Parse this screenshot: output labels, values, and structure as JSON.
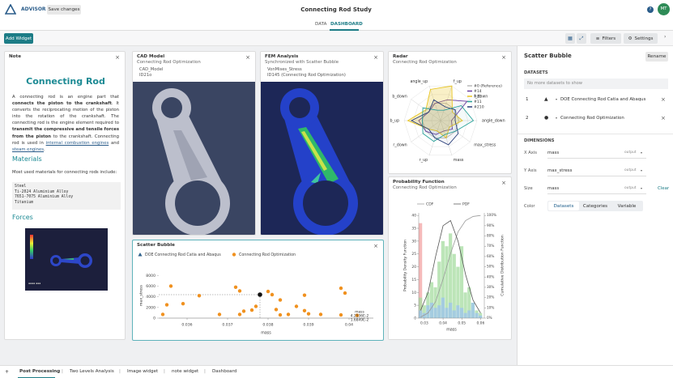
{
  "header": {
    "app": "ADVISOR",
    "save": "Save changes",
    "title": "Connecting Rod Study",
    "help": "?",
    "avatar": "MT"
  },
  "tabs": [
    "DATA",
    "DASHBOARD"
  ],
  "toolbar": {
    "add": "Add Widget",
    "filters": "Filters",
    "settings": "Settings"
  },
  "note": {
    "title": "Note",
    "heading": "Connecting Rod",
    "paragraph": [
      "A connecting rod is an engine part that ",
      "connects the piston to the crankshaft",
      ". It converts the reciprocating motion of the piston into the rotation of the crankshaft. The connecting rod is the engine element required to ",
      "transmit the compressive and tensile forces from the piston",
      " to the crankshaft. Connecting rod is used in ",
      "internal combustion engines",
      " and ",
      "steam engines",
      "."
    ],
    "materials_heading": "Materials",
    "materials_intro": "Most used materials for connecting rods include:",
    "materials": [
      "Steel",
      "Ti-2024 Aluminium Alloy",
      "7651-7075 Aluminium Alloy",
      "Titanium"
    ],
    "forces_heading": "Forces"
  },
  "cad": {
    "title": "CAD Model",
    "subtitle": "Connecting Rod Optimization",
    "name": "CAD_Model",
    "id": "ID21o"
  },
  "fem": {
    "title": "FEM Analysis",
    "subtitle": "Synchronized with Scatter Bubble",
    "name": "VonMises_Stress",
    "id": "ID145 (Connecting Rod Optimization)"
  },
  "chart_data": [
    {
      "type": "radar",
      "title": "Radar",
      "subtitle": "Connecting Rod Optimization",
      "axes": [
        "f_up",
        "f_down",
        "angle_down",
        "max_stress",
        "mass",
        "r_up",
        "r_down",
        "b_up",
        "b_down",
        "angle_up"
      ],
      "rlim": [
        0,
        1
      ],
      "series": [
        {
          "name": "#0 (Reference)",
          "color": "#b8b8b8",
          "values": [
            0.5,
            0.5,
            0.5,
            0.5,
            0.5,
            0.5,
            0.5,
            0.5,
            0.5,
            0.5
          ]
        },
        {
          "name": "#14",
          "color": "#6b3fa0",
          "values": [
            0.6,
            0.9,
            0.3,
            0.4,
            0.3,
            0.4,
            0.5,
            0.6,
            0.4,
            0.5
          ]
        },
        {
          "name": "#21",
          "color": "#e8c420",
          "values": [
            1.0,
            0.4,
            0.6,
            0.3,
            0.5,
            0.3,
            0.4,
            0.9,
            0.5,
            0.9
          ]
        },
        {
          "name": "#11",
          "color": "#2aa39a",
          "values": [
            0.3,
            0.7,
            0.9,
            0.5,
            0.4,
            0.6,
            0.6,
            0.5,
            0.6,
            0.3
          ]
        },
        {
          "name": "#210",
          "color": "#2a3f7a",
          "values": [
            0.4,
            0.5,
            0.4,
            0.6,
            0.7,
            0.5,
            0.4,
            0.8,
            0.4,
            0.6
          ]
        }
      ]
    },
    {
      "type": "histogram",
      "title": "Probability Function",
      "subtitle": "Connecting Rod Optimization",
      "bins": [
        0.027,
        0.029,
        0.031,
        0.033,
        0.035,
        0.037,
        0.039,
        0.041,
        0.043,
        0.045,
        0.047,
        0.049,
        0.051,
        0.053,
        0.055,
        0.057,
        0.059,
        0.061
      ],
      "series": [
        {
          "color": "#f2a3a3",
          "values": [
            37,
            0,
            0,
            0,
            0,
            0,
            0,
            0,
            0,
            0,
            0,
            0,
            0,
            0,
            0,
            0,
            0
          ]
        },
        {
          "color": "#a6dca0",
          "values": [
            8,
            5,
            10,
            14,
            12,
            22,
            30,
            28,
            33,
            25,
            20,
            28,
            10,
            12,
            6,
            3,
            2
          ]
        },
        {
          "color": "#9cc3ee",
          "values": [
            3,
            2,
            5,
            6,
            4,
            5,
            8,
            4,
            6,
            3,
            5,
            4,
            2,
            3,
            6,
            2,
            1
          ]
        }
      ],
      "curve_x": [
        0.028,
        0.032,
        0.036,
        0.04,
        0.044,
        0.048,
        0.052,
        0.056,
        0.06
      ],
      "curves": [
        {
          "name": "CDF",
          "color": "#9a9a9a",
          "axis": "y2",
          "values": [
            1,
            5,
            16,
            38,
            63,
            84,
            95,
            99,
            100
          ]
        },
        {
          "name": "PDF",
          "color": "#555555",
          "values": [
            3,
            10,
            24,
            36,
            38,
            30,
            17,
            7,
            2
          ]
        }
      ],
      "xlabel": "mass",
      "ylabel": "Probability Density Function",
      "y2label": "Cumulative Distribution Function",
      "xlim": [
        0.027,
        0.062
      ],
      "xticks": [
        0.03,
        0.04,
        0.05,
        0.06
      ],
      "ylim": [
        0,
        41
      ],
      "yticks": [
        0,
        5,
        10,
        15,
        20,
        25,
        30,
        35,
        40
      ],
      "y2lim": [
        0,
        102.5
      ],
      "y2ticks": [
        {
          "value": 0,
          "label": "0%"
        },
        {
          "value": 10,
          "label": "10%"
        },
        {
          "value": 20,
          "label": "20%"
        },
        {
          "value": 30,
          "label": "30%"
        },
        {
          "value": 40,
          "label": "40%"
        },
        {
          "value": 50,
          "label": "50%"
        },
        {
          "value": 60,
          "label": "60%"
        },
        {
          "value": 70,
          "label": "70%"
        },
        {
          "value": 80,
          "label": "80%"
        },
        {
          "value": 90,
          "label": "90%"
        },
        {
          "value": 100,
          "label": "100%"
        }
      ]
    },
    {
      "type": "scatter",
      "title": "Scatter Bubble",
      "series": [
        {
          "name": "DOE Connecting Rod Catia and Abaqus",
          "color": "#2c5f8a",
          "marker": "triangle",
          "x": [],
          "y": []
        },
        {
          "name": "Connecting Rod Optimization",
          "color": "#f0911f",
          "marker": "circle",
          "x": [
            0.0356,
            0.0355,
            0.0354,
            0.0359,
            0.0363,
            0.0368,
            0.0372,
            0.0373,
            0.0374,
            0.0373,
            0.0377,
            0.0376,
            0.038,
            0.0381,
            0.0382,
            0.0383,
            0.0385,
            0.0387,
            0.0389,
            0.039,
            0.0389,
            0.0393,
            0.0398,
            0.0399,
            0.0398,
            0.0402,
            0.0383
          ],
          "y": [
            6000,
            2500,
            700,
            2700,
            4200,
            700,
            5800,
            5100,
            1300,
            700,
            2200,
            1500,
            5000,
            4400,
            1600,
            3400,
            700,
            2200,
            1400,
            800,
            4300,
            700,
            5600,
            4700,
            600,
            500,
            600
          ]
        }
      ],
      "highlight": {
        "x": 0.0378,
        "y": 4400
      },
      "tooltip": [
        "mass",
        "4.2536E-2",
        "1.6849E-2"
      ],
      "xlabel": "mass",
      "ylabel": "max_stress",
      "xlim": [
        0.0353,
        0.0406
      ],
      "xticks": [
        0.036,
        0.037,
        0.038,
        0.039,
        0.04
      ],
      "ylim": [
        0,
        8500
      ],
      "yticks": [
        0,
        2000,
        4000,
        6000,
        8000
      ]
    }
  ],
  "panel": {
    "title": "Scatter Bubble",
    "rename": "Rename",
    "datasets_heading": "DATASETS",
    "empty": "No more datasets to show",
    "datasets": [
      {
        "index": 1,
        "name": "DOE Connecting Rod Catia and Abaqus"
      },
      {
        "index": 2,
        "name": "Connecting Rod Optimization"
      }
    ],
    "dimensions_heading": "DIMENSIONS",
    "dimensions": [
      {
        "label": "X Axis",
        "value": "mass",
        "kind": "output"
      },
      {
        "label": "Y Axis",
        "value": "max_stress",
        "kind": "output"
      },
      {
        "label": "Size",
        "value": "mass",
        "kind": "output"
      }
    ],
    "clear": "Clear",
    "color_label": "Color",
    "color_options": [
      "Datasets",
      "Categories",
      "Variable"
    ]
  },
  "bottom_tabs": {
    "add": "+",
    "tabs": [
      "Post Processing",
      "Two Levels Analysis",
      "Image widget",
      "note widget",
      "Dashboard"
    ]
  }
}
